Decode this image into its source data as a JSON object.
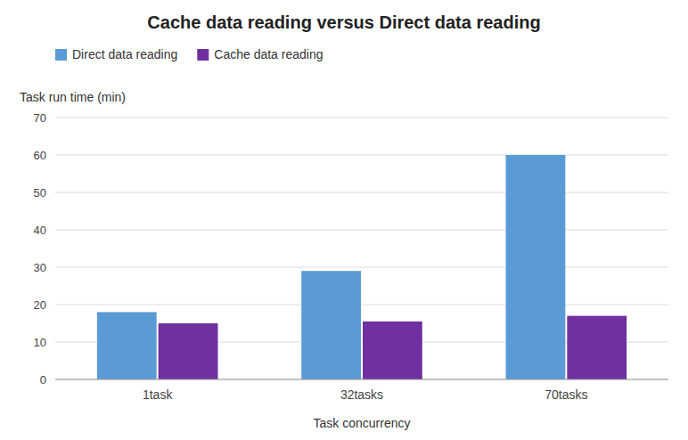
{
  "chart_data": {
    "type": "bar",
    "title": "Cache data reading versus Direct data reading",
    "categories": [
      "1task",
      "32tasks",
      "70tasks"
    ],
    "series": [
      {
        "name": "Direct data reading",
        "color": "#5B9BD5",
        "values": [
          18,
          29,
          60
        ]
      },
      {
        "name": "Cache data reading",
        "color": "#7030A0",
        "values": [
          15,
          15.5,
          17
        ]
      }
    ],
    "xlabel": "Task concurrency",
    "ylabel": "Task run time (min)",
    "ylim": [
      0,
      70
    ],
    "yticks": [
      0,
      10,
      20,
      30,
      40,
      50,
      60,
      70
    ],
    "grid": true,
    "legend": "upper left"
  }
}
